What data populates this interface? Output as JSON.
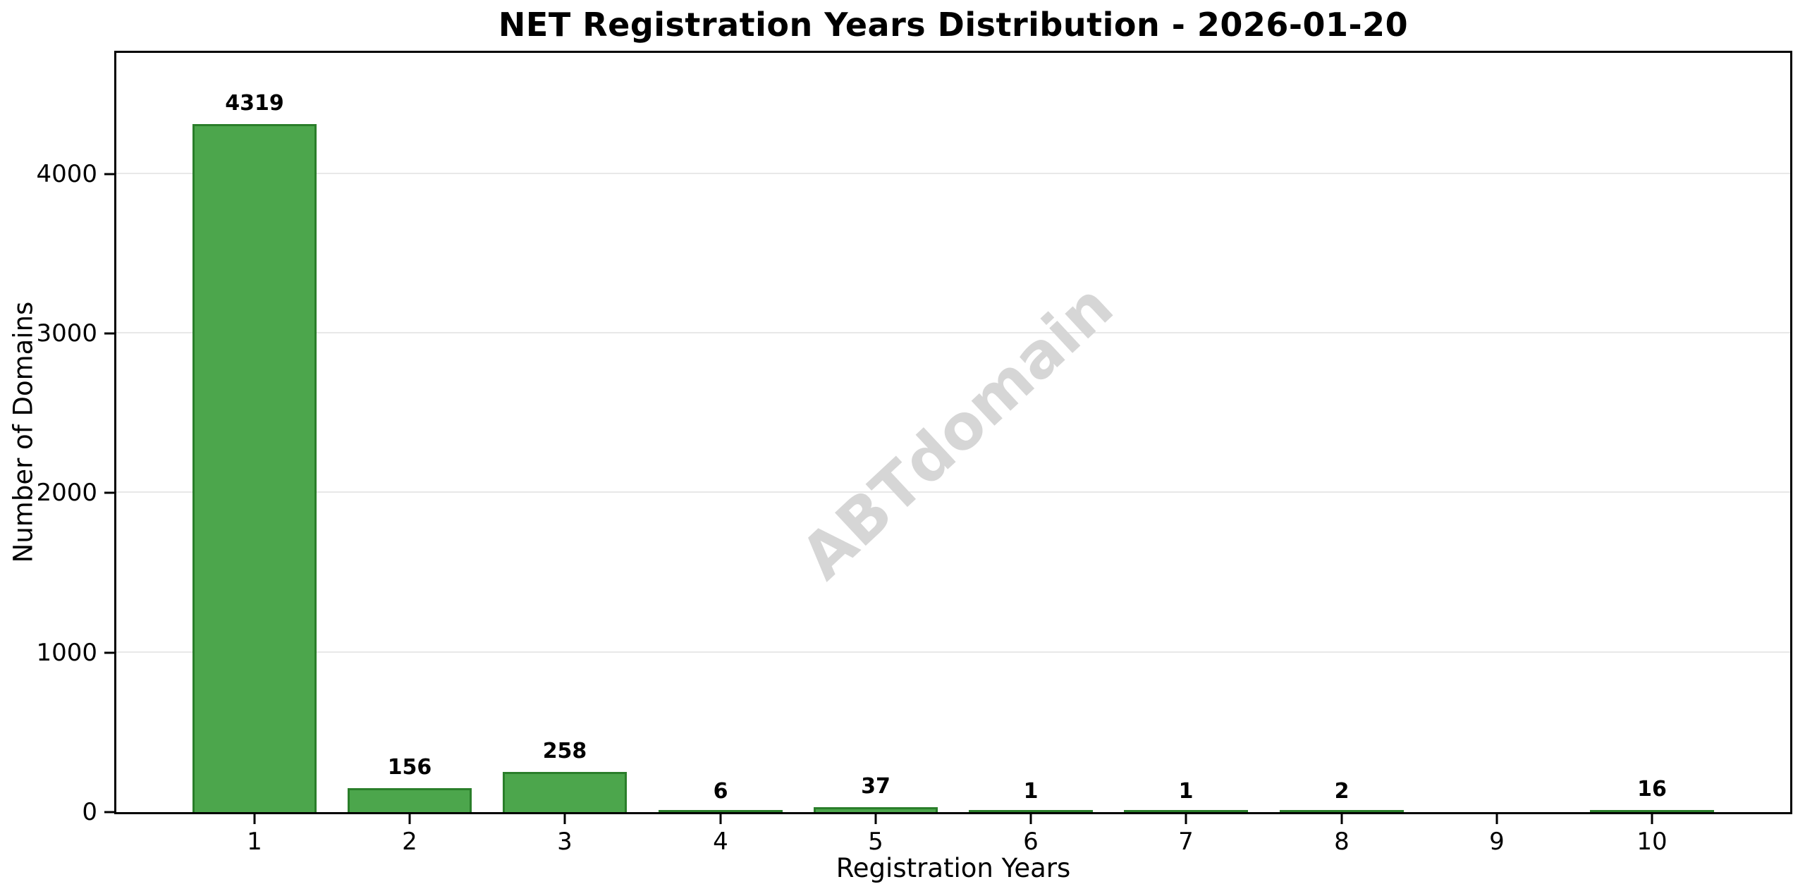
{
  "figure": {
    "title": "NET Registration Years Distribution - 2026-01-20",
    "watermark": "ABTdomain"
  },
  "chart_data": {
    "type": "bar",
    "title": "NET Registration Years Distribution - 2026-01-20",
    "xlabel": "Registration Years",
    "ylabel": "Number of Domains",
    "categories": [
      "1",
      "2",
      "3",
      "4",
      "5",
      "6",
      "7",
      "8",
      "9",
      "10"
    ],
    "values": [
      4319,
      156,
      258,
      6,
      37,
      1,
      1,
      2,
      0,
      16
    ],
    "bar_labels": [
      "4319",
      "156",
      "258",
      "6",
      "37",
      "1",
      "1",
      "2",
      "",
      "16"
    ],
    "ytick_labels": [
      "0",
      "1000",
      "2000",
      "3000",
      "4000"
    ],
    "yticks": [
      0,
      1000,
      2000,
      3000,
      4000
    ],
    "ylim": [
      0,
      4760
    ],
    "xlim": [
      0.11,
      10.89
    ],
    "bar_width": 0.8,
    "grid": "horizontal-only",
    "legend": "none",
    "colors": {
      "bar_fill": "#4ca64c",
      "bar_edge": "#2a7e2a",
      "grid": "#e8e8e8",
      "spine": "#000000",
      "text": "#000000",
      "watermark": "#d6d6d6"
    }
  }
}
